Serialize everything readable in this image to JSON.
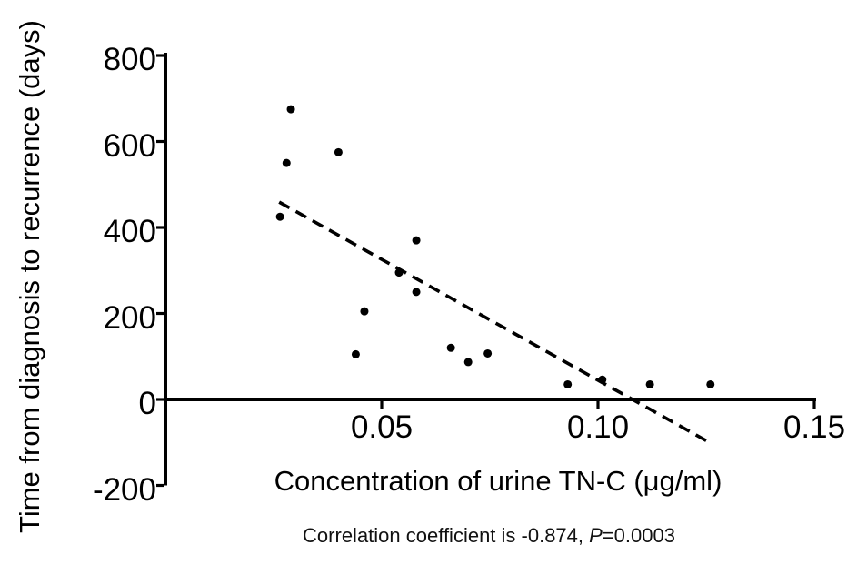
{
  "figure": {
    "background": "#ffffff",
    "ink_color": "#000000"
  },
  "chart_data": {
    "type": "scatter",
    "title": "",
    "xlabel": "Concentration of urine TN-C (μg/ml)",
    "ylabel": "Time from diagnosis to recurrence (days)",
    "xlim": [
      0,
      0.15
    ],
    "ylim": [
      -200,
      800
    ],
    "grid": false,
    "legend": null,
    "marker": {
      "shape": "circle",
      "color": "#000000",
      "radius_px": 4.5
    },
    "xticks": [
      {
        "value": 0.05,
        "label": "0.05"
      },
      {
        "value": 0.1,
        "label": "0.10"
      },
      {
        "value": 0.15,
        "label": "0.15"
      }
    ],
    "yticks": [
      {
        "value": 800,
        "label": "800"
      },
      {
        "value": 600,
        "label": "600"
      },
      {
        "value": 400,
        "label": "400"
      },
      {
        "value": 200,
        "label": "200"
      },
      {
        "value": 0,
        "label": "0"
      },
      {
        "value": -200,
        "label": "-200"
      }
    ],
    "points": [
      {
        "x": 0.029,
        "y": 675
      },
      {
        "x": 0.04,
        "y": 575
      },
      {
        "x": 0.028,
        "y": 550
      },
      {
        "x": 0.0265,
        "y": 425
      },
      {
        "x": 0.058,
        "y": 370
      },
      {
        "x": 0.054,
        "y": 295
      },
      {
        "x": 0.058,
        "y": 250
      },
      {
        "x": 0.046,
        "y": 205
      },
      {
        "x": 0.066,
        "y": 120
      },
      {
        "x": 0.044,
        "y": 105
      },
      {
        "x": 0.0745,
        "y": 107
      },
      {
        "x": 0.07,
        "y": 87
      },
      {
        "x": 0.101,
        "y": 46
      },
      {
        "x": 0.093,
        "y": 35
      },
      {
        "x": 0.112,
        "y": 35
      },
      {
        "x": 0.126,
        "y": 35
      }
    ],
    "trendline": {
      "style": "dashed",
      "x1": 0.0263,
      "y1": 459,
      "x2": 0.1261,
      "y2": -102
    },
    "caption": {
      "prefix": "Correlation coefficient is -0.874, ",
      "italic": "P",
      "suffix": "=0.0003"
    }
  }
}
